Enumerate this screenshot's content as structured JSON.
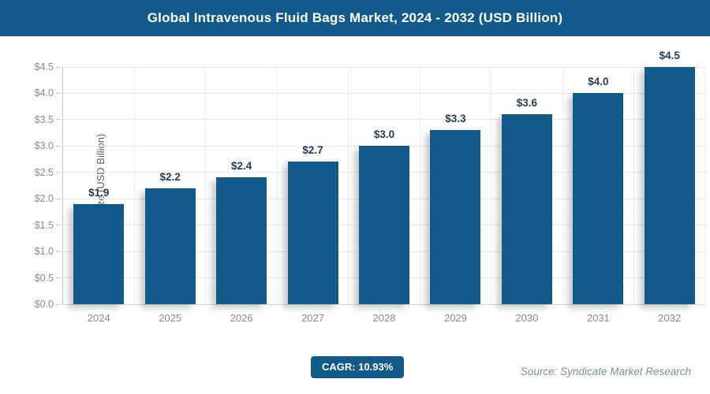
{
  "header": {
    "title": "Global Intravenous Fluid Bags Market, 2024 - 2032 (USD Billion)"
  },
  "chart_data": {
    "type": "bar",
    "categories": [
      "2024",
      "2025",
      "2026",
      "2027",
      "2028",
      "2029",
      "2030",
      "2031",
      "2032"
    ],
    "values": [
      1.9,
      2.2,
      2.4,
      2.7,
      3.0,
      3.3,
      3.6,
      4.0,
      4.5
    ],
    "bar_labels": [
      "$1.9",
      "$2.2",
      "$2.4",
      "$2.7",
      "$3.0",
      "$3.3",
      "$3.6",
      "$4.0",
      "$4.5"
    ],
    "title": "Global Intravenous Fluid Bags Market, 2024 - 2032 (USD Billion)",
    "xlabel": "",
    "ylabel": "Market Size (USD Billion)",
    "ylim": [
      0,
      4.5
    ],
    "ytick_step": 0.5,
    "ytick_labels": [
      "$0.0",
      "$0.5",
      "$1.0",
      "$1.5",
      "$2.0",
      "$2.5",
      "$3.0",
      "$3.5",
      "$4.0",
      "$4.5"
    ],
    "grid": true,
    "legend": "none",
    "colors": {
      "bar": "#115a8a",
      "bar_label": "#1f3a5f",
      "axis_text": "#8a8a8a",
      "brand": "#115a8a"
    }
  },
  "footer": {
    "cagr_label": "CAGR: 10.93%",
    "source": "Source: Syndicate Market Research"
  }
}
